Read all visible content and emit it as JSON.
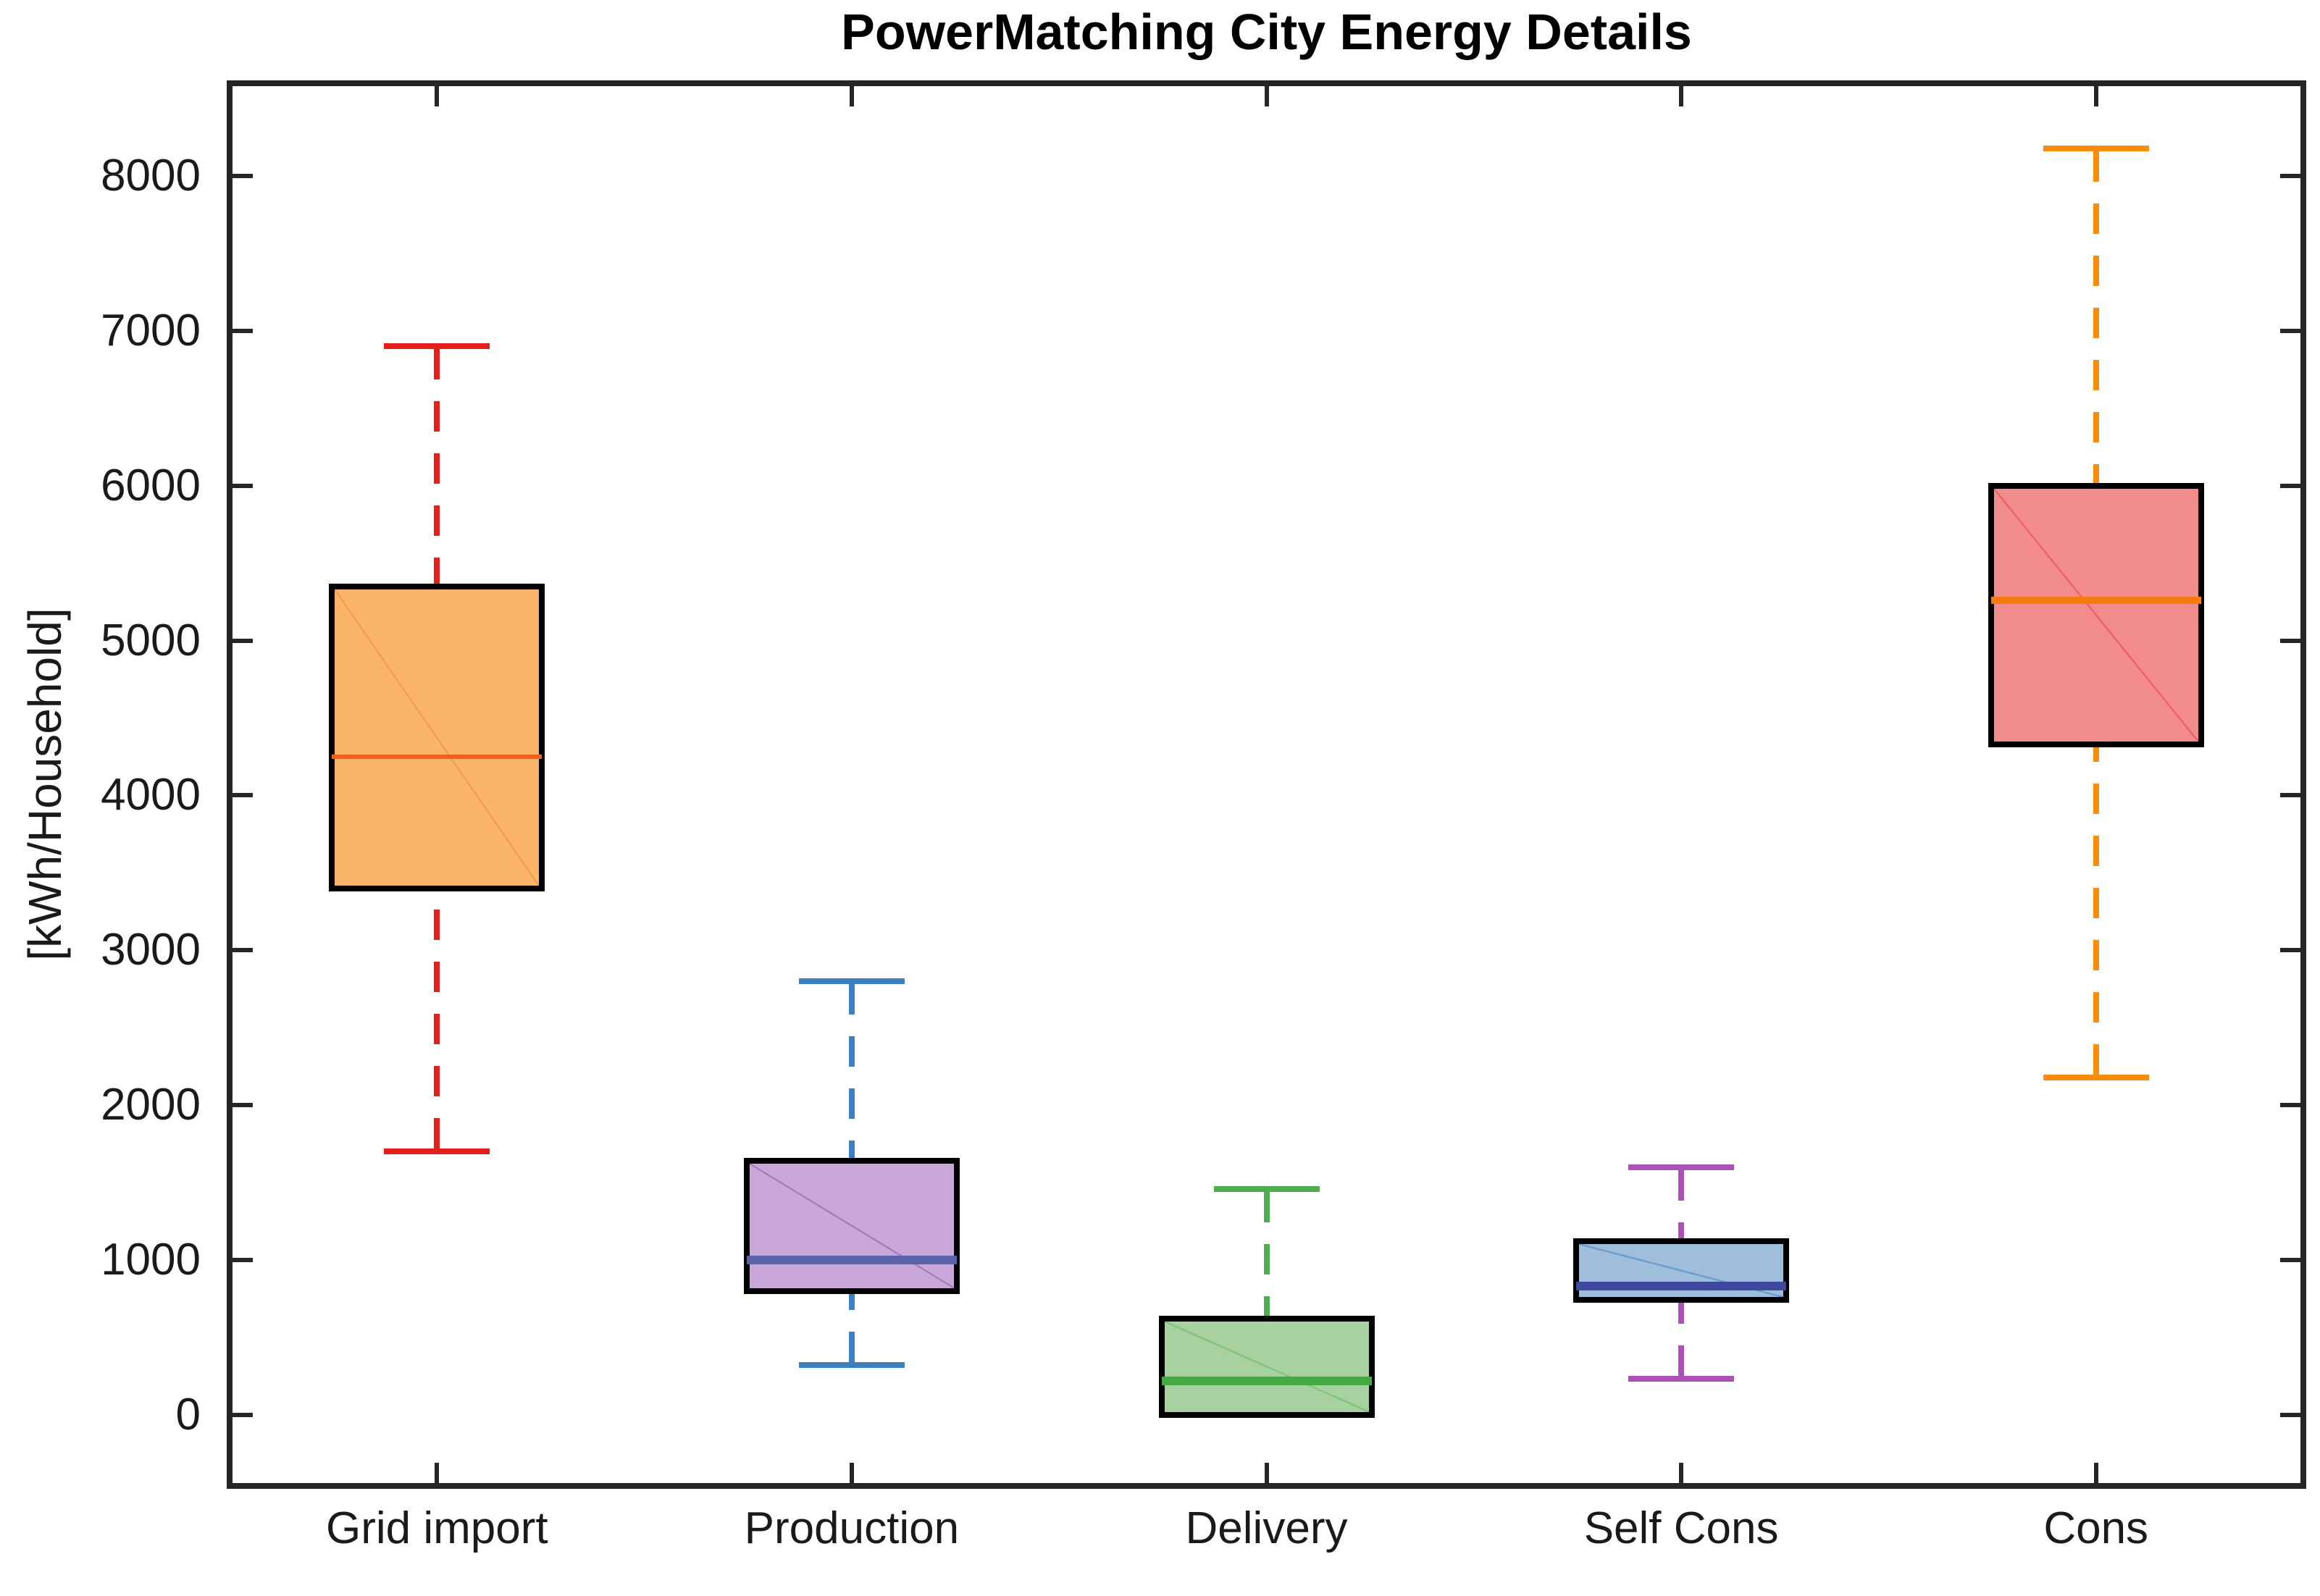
{
  "title": "PowerMatching City Energy Details",
  "background_color": "#ffffff",
  "axis_color": "#262626",
  "chart_data": {
    "type": "boxplot",
    "title": "PowerMatching City Energy Details",
    "xlabel": "",
    "ylabel": "[kWh/Household]",
    "ylim": [
      -460,
      8600
    ],
    "yticks": [
      0,
      1000,
      2000,
      3000,
      4000,
      5000,
      6000,
      7000,
      8000
    ],
    "grid": "off",
    "legend": "none",
    "categories": [
      "Grid import",
      "Production",
      "Delivery",
      "Self Cons",
      "Cons"
    ],
    "series": [
      {
        "key": "grid-import",
        "name": "Grid import",
        "whisker_low": 1700,
        "q1": 3400,
        "median": 4250,
        "q3": 5350,
        "whisker_high": 6900,
        "fill": "#FAB56B",
        "border": "#000000",
        "median_color": "#F2601C",
        "median_weight": 6,
        "whisker_color": "#E3201B",
        "diag_color": "#F0A04A",
        "whisker_style": "dashed"
      },
      {
        "key": "production",
        "name": "Production",
        "whisker_low": 320,
        "q1": 800,
        "median": 1000,
        "q3": 1640,
        "whisker_high": 2800,
        "fill": "#C9A7D8",
        "border": "#000000",
        "median_color": "#5A62AA",
        "median_weight": 12,
        "whisker_color": "#3C7FBE",
        "diag_color": "#A77CC2",
        "whisker_style": "dashed"
      },
      {
        "key": "delivery",
        "name": "Delivery",
        "whisker_low": 0,
        "q1": 0,
        "median": 220,
        "q3": 620,
        "whisker_high": 1460,
        "fill": "#A7D2A0",
        "border": "#000000",
        "median_color": "#43A943",
        "median_weight": 12,
        "whisker_color": "#4BAE4F",
        "diag_color": "#82C47E",
        "whisker_style": "dashed"
      },
      {
        "key": "self-cons",
        "name": "Self Cons",
        "whisker_low": 230,
        "q1": 740,
        "median": 830,
        "q3": 1120,
        "whisker_high": 1600,
        "fill": "#9FBEDC",
        "border": "#000000",
        "median_color": "#3E499E",
        "median_weight": 12,
        "whisker_color": "#AC51B5",
        "diag_color": "#6D9CCE",
        "whisker_style": "dashed"
      },
      {
        "key": "cons",
        "name": "Cons",
        "whisker_low": 2180,
        "q1": 4330,
        "median": 5260,
        "q3": 6000,
        "whisker_high": 8180,
        "fill": "#F28B8B",
        "border": "#000000",
        "median_color": "#F87B0F",
        "median_weight": 10,
        "whisker_color": "#FB8D0A",
        "diag_color": "#EC6466",
        "whisker_style": "dashed"
      }
    ]
  },
  "y_axis": {
    "label": "[kWh/Household]"
  }
}
